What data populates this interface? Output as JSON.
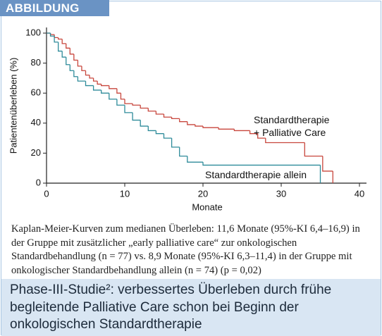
{
  "badge": "ABBILDUNG",
  "chart_data": {
    "type": "step",
    "xlabel": "Monate",
    "ylabel": "Patientenüberleben (%)",
    "xlim": [
      0,
      40
    ],
    "ylim": [
      0,
      100
    ],
    "xticks": [
      0,
      10,
      20,
      30,
      40
    ],
    "yticks": [
      0,
      20,
      40,
      60,
      80,
      100
    ],
    "series": [
      {
        "name": "Standardtherapie\n+ Palliative Care",
        "color": "#c8463c",
        "x": [
          0,
          0.5,
          1,
          1.5,
          2,
          2.5,
          3,
          3.5,
          4,
          4.5,
          5,
          5.5,
          6,
          6.5,
          7,
          8,
          9,
          9.5,
          10,
          11,
          12,
          13,
          14,
          15,
          16,
          17,
          18,
          19,
          20,
          22,
          24,
          26,
          27,
          28,
          33,
          35.3,
          36.6
        ],
        "values": [
          100,
          99,
          97,
          96,
          93,
          90,
          86,
          82,
          78,
          75,
          72,
          70,
          68,
          66,
          65,
          63,
          60,
          56,
          53,
          52,
          50,
          48,
          46,
          44,
          43,
          41,
          39,
          38,
          37,
          36,
          35,
          33,
          30,
          27,
          18,
          8,
          0
        ]
      },
      {
        "name": "Standardtherapie allein",
        "color": "#2e8b9a",
        "x": [
          0,
          0.5,
          1,
          1.5,
          2,
          2.5,
          3,
          3.5,
          4,
          5,
          6,
          7,
          8,
          9,
          10,
          11,
          12,
          13,
          14,
          15,
          16,
          17,
          18,
          20,
          35
        ],
        "values": [
          100,
          98,
          94,
          88,
          84,
          79,
          75,
          71,
          68,
          65,
          62,
          60,
          56,
          52,
          47,
          42,
          38,
          35,
          33,
          30,
          24,
          18,
          14,
          12,
          0
        ]
      }
    ]
  },
  "caption": "Kaplan-Meier-Kurven zum medianen Überleben: 11,6 Monate (95%-KI 6,4–16,9) in der Gruppe mit zusätzlicher „early palliative care“ zur onkologischen Standardbehandlung (n = 77) vs. 8,9 Monate (95%-KI 6,3–11,4) in der Gruppe mit onkologischer Standardbehandlung allein (n = 74) (p = 0,02)",
  "headline": "Phase-III-Studie²: verbessertes Überleben durch frühe begleitende Palliative Care schon bei Beginn der onkologischen Standardtherapie"
}
